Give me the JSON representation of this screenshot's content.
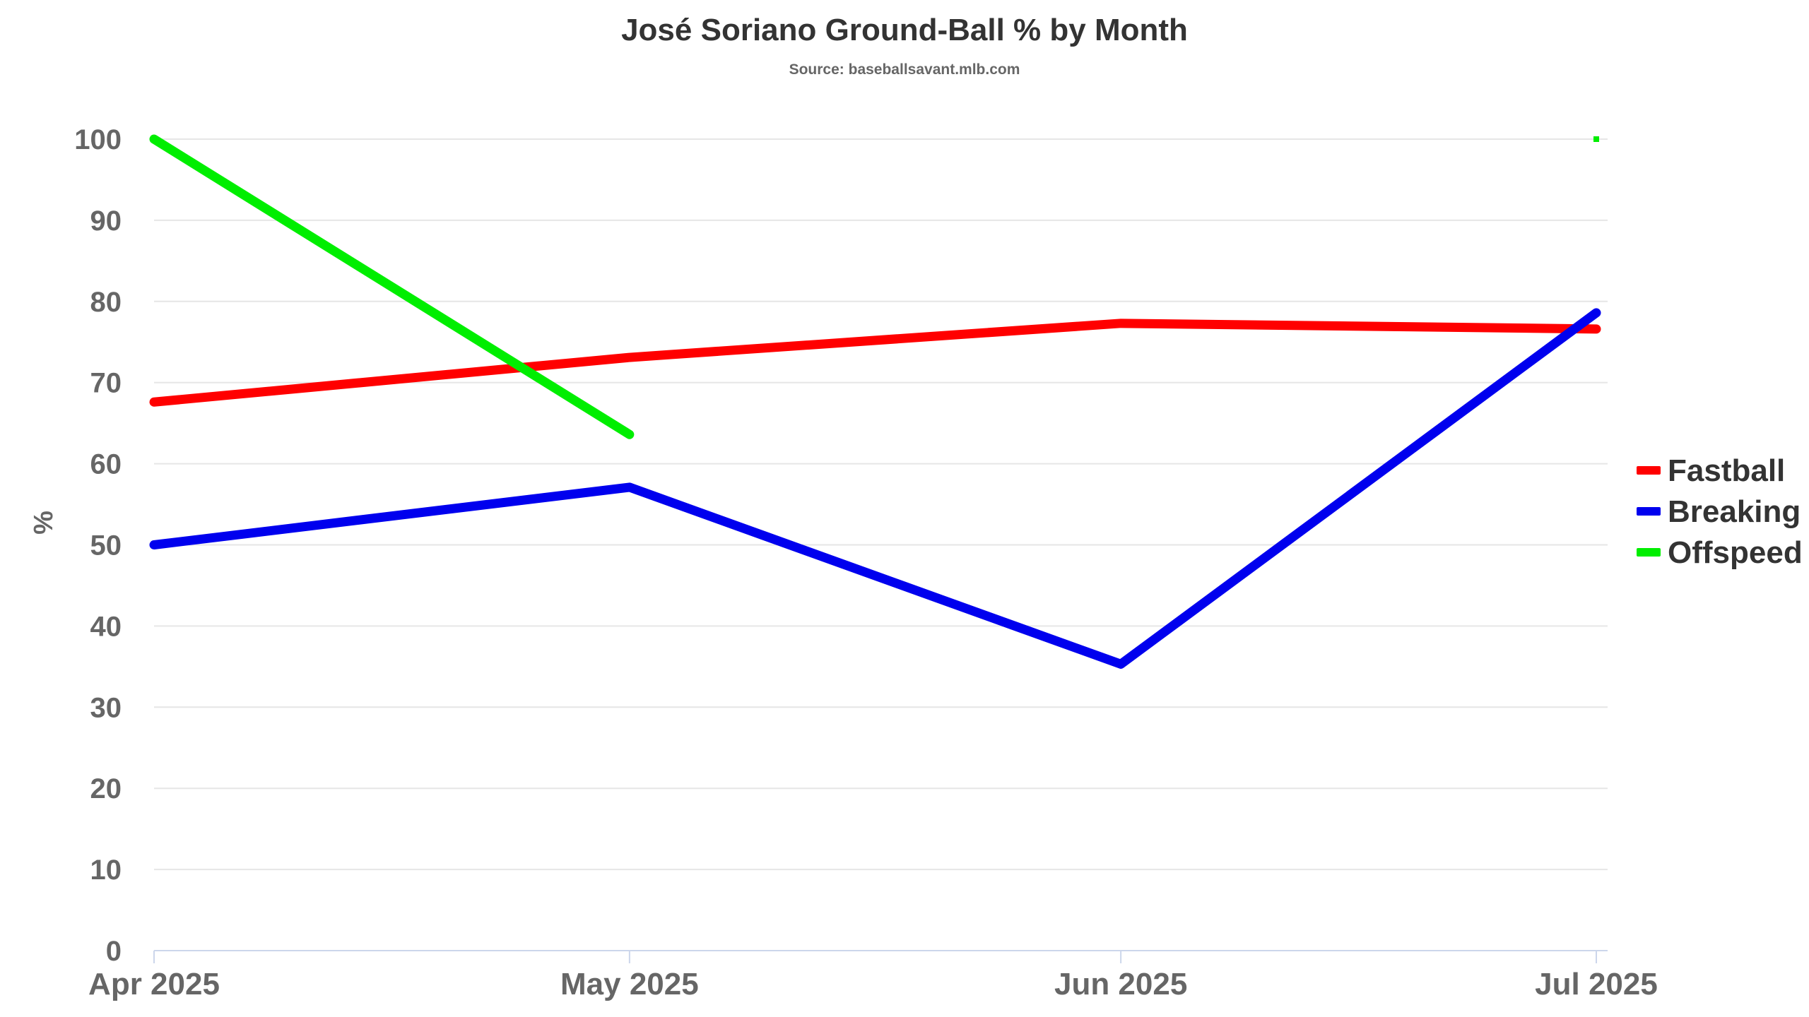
{
  "chart_data": {
    "type": "line",
    "title": "José Soriano Ground-Ball % by Month",
    "subtitle": "Source: baseballsavant.mlb.com",
    "ylabel": "%",
    "xlabel": "",
    "x": [
      "2025-04-01",
      "2025-05-01",
      "2025-06-01",
      "2025-07-01"
    ],
    "x_tick_labels": [
      "Apr 2025",
      "May 2025",
      "Jun 2025",
      "Jul 2025"
    ],
    "ylim": [
      0,
      100
    ],
    "y_ticks": [
      0,
      10,
      20,
      30,
      40,
      50,
      60,
      70,
      80,
      90,
      100
    ],
    "grid": true,
    "legend_position": "right",
    "series": [
      {
        "name": "Fastball",
        "color": "#ff0000",
        "values": [
          67.6,
          73.1,
          77.3,
          76.6
        ]
      },
      {
        "name": "Breaking",
        "color": "#0000ee",
        "values": [
          50.0,
          57.1,
          35.3,
          78.6
        ]
      },
      {
        "name": "Offspeed",
        "color": "#00ee00",
        "values": [
          100.0,
          63.6,
          null,
          100.0
        ]
      }
    ]
  }
}
